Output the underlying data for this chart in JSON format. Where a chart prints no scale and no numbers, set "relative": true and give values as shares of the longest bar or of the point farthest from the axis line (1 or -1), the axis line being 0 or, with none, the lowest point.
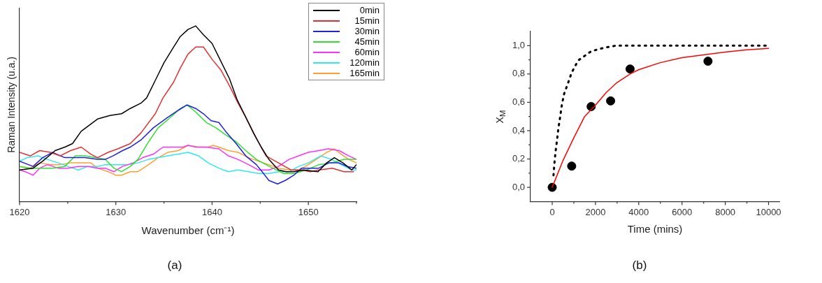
{
  "chart_data": [
    {
      "type": "line",
      "xlabel": "Wavenumber (cm⁻¹)",
      "ylabel": "Raman Intensity (u.a.)",
      "relative": true,
      "legend": "top right",
      "grid": false,
      "marker": "none",
      "annotations": [
        "(a)"
      ],
      "xlim": [
        1620,
        1655
      ],
      "xticks": [
        1620,
        {
          "value": 1625,
          "label": null
        },
        1630,
        {
          "value": 1635,
          "label": null
        },
        1640,
        {
          "value": 1645,
          "label": null
        },
        1650,
        {
          "value": 1655,
          "label": null
        }
      ],
      "series": [
        {
          "name": "0min",
          "color": "#000000",
          "x": [
            1620.0,
            1621.4,
            1622.4,
            1623.7,
            1624.7,
            1625.5,
            1626.4,
            1628.1,
            1629.4,
            1630.6,
            1631.5,
            1632.6,
            1633.2,
            1634.1,
            1635.0,
            1636.0,
            1636.7,
            1637.5,
            1638.3,
            1639.1,
            1640.0,
            1640.9,
            1641.8,
            1642.6,
            1643.5,
            1644.3,
            1645.1,
            1645.9,
            1646.9,
            1647.7,
            1648.5,
            1649.5,
            1651.0,
            1651.9,
            1652.7,
            1653.6,
            1654.5,
            1655.0
          ],
          "values": [
            0.18,
            0.19,
            0.23,
            0.29,
            0.31,
            0.33,
            0.4,
            0.47,
            0.49,
            0.5,
            0.53,
            0.56,
            0.59,
            0.69,
            0.79,
            0.88,
            0.94,
            0.98,
            1.0,
            0.95,
            0.9,
            0.8,
            0.7,
            0.58,
            0.48,
            0.39,
            0.31,
            0.24,
            0.18,
            0.17,
            0.17,
            0.18,
            0.17,
            0.22,
            0.25,
            0.22,
            0.18,
            0.21
          ]
        },
        {
          "name": "15min",
          "color": "#e03030",
          "x": [
            1620.0,
            1621.1,
            1622.1,
            1623.2,
            1624.2,
            1625.3,
            1626.4,
            1627.4,
            1628.1,
            1629.2,
            1630.2,
            1631.5,
            1632.6,
            1634.1,
            1634.9,
            1636.0,
            1636.7,
            1637.5,
            1638.3,
            1639.1,
            1640.0,
            1640.9,
            1641.8,
            1642.7,
            1643.5,
            1644.6,
            1645.6,
            1646.9,
            1648.2,
            1649.3,
            1650.2,
            1651.1,
            1652.5,
            1653.7,
            1654.7
          ],
          "values": [
            0.28,
            0.26,
            0.29,
            0.28,
            0.26,
            0.29,
            0.31,
            0.27,
            0.25,
            0.28,
            0.3,
            0.33,
            0.39,
            0.5,
            0.59,
            0.68,
            0.76,
            0.84,
            0.88,
            0.88,
            0.81,
            0.75,
            0.66,
            0.56,
            0.48,
            0.36,
            0.26,
            0.22,
            0.18,
            0.18,
            0.17,
            0.18,
            0.19,
            0.17,
            0.17
          ]
        },
        {
          "name": "30min",
          "color": "#2020e0",
          "x": [
            1620.0,
            1621.4,
            1622.4,
            1623.4,
            1624.7,
            1625.8,
            1626.8,
            1628.1,
            1628.9,
            1629.7,
            1630.7,
            1631.5,
            1632.6,
            1633.9,
            1635.4,
            1636.5,
            1637.4,
            1638.3,
            1639.1,
            1639.9,
            1640.7,
            1641.4,
            1642.5,
            1643.5,
            1644.6,
            1645.2,
            1645.9,
            1646.8,
            1647.6,
            1648.5,
            1649.3,
            1650.3,
            1651.1,
            1652.1,
            1653.2,
            1654.0,
            1655.0
          ],
          "values": [
            0.23,
            0.2,
            0.25,
            0.28,
            0.25,
            0.25,
            0.25,
            0.24,
            0.24,
            0.26,
            0.29,
            0.31,
            0.35,
            0.42,
            0.48,
            0.52,
            0.55,
            0.53,
            0.5,
            0.46,
            0.45,
            0.4,
            0.33,
            0.26,
            0.21,
            0.17,
            0.12,
            0.1,
            0.12,
            0.15,
            0.19,
            0.19,
            0.19,
            0.22,
            0.22,
            0.2,
            0.19
          ]
        },
        {
          "name": "45min",
          "color": "#30e030",
          "x": [
            1620.0,
            1621.1,
            1622.4,
            1623.4,
            1624.7,
            1625.8,
            1626.8,
            1627.9,
            1628.9,
            1629.8,
            1630.6,
            1631.5,
            1632.3,
            1633.4,
            1634.4,
            1635.7,
            1636.7,
            1637.4,
            1638.3,
            1639.4,
            1640.4,
            1641.4,
            1642.5,
            1643.5,
            1644.6,
            1645.6,
            1647.4,
            1648.5,
            1649.8,
            1651.1,
            1652.4,
            1653.7,
            1655.0
          ],
          "values": [
            0.2,
            0.19,
            0.19,
            0.19,
            0.2,
            0.26,
            0.26,
            0.25,
            0.24,
            0.19,
            0.17,
            0.2,
            0.24,
            0.34,
            0.42,
            0.48,
            0.53,
            0.55,
            0.51,
            0.45,
            0.42,
            0.38,
            0.34,
            0.29,
            0.24,
            0.21,
            0.16,
            0.16,
            0.18,
            0.21,
            0.22,
            0.24,
            0.24
          ]
        },
        {
          "name": "60min",
          "color": "#ff30ff",
          "x": [
            1620.0,
            1620.6,
            1621.4,
            1622.1,
            1622.9,
            1624.0,
            1625.0,
            1626.1,
            1627.1,
            1628.1,
            1628.9,
            1629.8,
            1630.7,
            1631.8,
            1632.8,
            1633.9,
            1634.9,
            1636.0,
            1637.0,
            1637.5,
            1638.3,
            1639.4,
            1640.7,
            1641.7,
            1642.7,
            1643.8,
            1644.8,
            1645.9,
            1646.9,
            1648.0,
            1649.0,
            1650.0,
            1651.1,
            1652.1,
            1653.2,
            1654.2,
            1655.0
          ],
          "values": [
            0.18,
            0.17,
            0.15,
            0.19,
            0.21,
            0.19,
            0.19,
            0.2,
            0.2,
            0.19,
            0.19,
            0.17,
            0.2,
            0.22,
            0.25,
            0.27,
            0.31,
            0.31,
            0.31,
            0.32,
            0.31,
            0.31,
            0.3,
            0.26,
            0.24,
            0.21,
            0.18,
            0.18,
            0.2,
            0.24,
            0.26,
            0.28,
            0.29,
            0.3,
            0.29,
            0.26,
            0.24
          ]
        },
        {
          "name": "120min",
          "color": "#30e8f0",
          "x": [
            1620.0,
            1620.8,
            1621.9,
            1622.9,
            1624.0,
            1625.0,
            1626.1,
            1627.1,
            1628.1,
            1628.9,
            1630.2,
            1631.3,
            1632.3,
            1633.4,
            1634.4,
            1635.4,
            1636.5,
            1637.5,
            1638.6,
            1639.6,
            1640.7,
            1641.7,
            1642.7,
            1643.8,
            1644.8,
            1645.9,
            1646.9,
            1648.0,
            1649.0,
            1650.0,
            1651.3,
            1652.4,
            1653.4,
            1654.5,
            1655.0
          ],
          "values": [
            0.23,
            0.25,
            0.26,
            0.24,
            0.22,
            0.2,
            0.18,
            0.2,
            0.2,
            0.21,
            0.21,
            0.21,
            0.22,
            0.24,
            0.25,
            0.26,
            0.27,
            0.28,
            0.26,
            0.22,
            0.19,
            0.17,
            0.18,
            0.17,
            0.16,
            0.16,
            0.17,
            0.17,
            0.2,
            0.22,
            0.26,
            0.24,
            0.21,
            0.18,
            0.18
          ]
        },
        {
          "name": "165min",
          "color": "#ffa030",
          "x": [
            1620.0,
            1621.1,
            1622.1,
            1623.2,
            1624.2,
            1625.3,
            1626.3,
            1627.4,
            1628.1,
            1629.2,
            1630.0,
            1630.6,
            1631.5,
            1632.3,
            1633.4,
            1634.4,
            1635.4,
            1636.5,
            1637.5,
            1638.6,
            1639.6,
            1640.1,
            1640.7,
            1641.7,
            1642.7,
            1643.8,
            1644.8,
            1645.9,
            1646.9,
            1648.0,
            1649.0,
            1650.0,
            1651.1,
            1651.9,
            1652.7,
            1653.4,
            1654.2,
            1655.0
          ],
          "values": [
            0.2,
            0.19,
            0.22,
            0.21,
            0.21,
            0.22,
            0.22,
            0.22,
            0.19,
            0.17,
            0.15,
            0.15,
            0.17,
            0.17,
            0.21,
            0.25,
            0.28,
            0.29,
            0.32,
            0.31,
            0.31,
            0.32,
            0.31,
            0.29,
            0.28,
            0.25,
            0.23,
            0.21,
            0.19,
            0.18,
            0.18,
            0.21,
            0.25,
            0.28,
            0.3,
            0.27,
            0.24,
            0.22
          ]
        }
      ]
    },
    {
      "type": "scatter",
      "xlabel": "Time (mins)",
      "ylabel": "X$_{M}$",
      "legend": false,
      "grid": false,
      "annotations": [
        "(b)"
      ],
      "xlim": [
        -1000,
        10500
      ],
      "xticks": [
        0,
        {
          "value": 1000,
          "label": null
        },
        2000,
        {
          "value": 3000,
          "label": null
        },
        4000,
        {
          "value": 5000,
          "label": null
        },
        6000,
        {
          "value": 7000,
          "label": null
        },
        8000,
        {
          "value": 9000,
          "label": null
        },
        10000
      ],
      "ylim": [
        -0.1,
        1.1
      ],
      "yticks": [
        {
          "value": 0,
          "label": "0,0"
        },
        {
          "value": 0.1,
          "label": null
        },
        {
          "value": 0.2,
          "label": "0,2"
        },
        {
          "value": 0.3,
          "label": null
        },
        {
          "value": 0.4,
          "label": "0,4"
        },
        {
          "value": 0.5,
          "label": null
        },
        {
          "value": 0.6,
          "label": "0,6"
        },
        {
          "value": 0.7,
          "label": null
        },
        {
          "value": 0.8,
          "label": "0,8"
        },
        {
          "value": 0.9,
          "label": null
        },
        {
          "value": 1.0,
          "label": "1,0"
        }
      ],
      "series": [
        {
          "type": "line",
          "line_style": "dotted",
          "marker": "none",
          "color": "#000000",
          "x": [
            60,
            100,
            150,
            220,
            280,
            360,
            450,
            550,
            720,
            900,
            1200,
            1800,
            2400,
            2950,
            3500,
            10000
          ],
          "values": [
            0.085,
            0.165,
            0.245,
            0.33,
            0.41,
            0.49,
            0.585,
            0.66,
            0.73,
            0.81,
            0.895,
            0.96,
            0.985,
            1.0,
            1.0,
            1.0
          ]
        },
        {
          "type": "line",
          "line_style": "solid",
          "marker": "none",
          "color": "#ff0000",
          "x": [
            0,
            500,
            1000,
            1500,
            2000,
            2500,
            3000,
            3600,
            4000,
            5000,
            6000,
            7000,
            8000,
            9000,
            10000
          ],
          "values": [
            0,
            0.19,
            0.35,
            0.5,
            0.58,
            0.67,
            0.74,
            0.8,
            0.83,
            0.88,
            0.915,
            0.935,
            0.955,
            0.97,
            0.98
          ]
        },
        {
          "type": "scatter",
          "marker": "circle",
          "color": "#000000",
          "x": [
            0,
            900,
            1800,
            2700,
            3600,
            7200
          ],
          "values": [
            0,
            0.15,
            0.57,
            0.61,
            0.835,
            0.89
          ]
        }
      ]
    }
  ]
}
